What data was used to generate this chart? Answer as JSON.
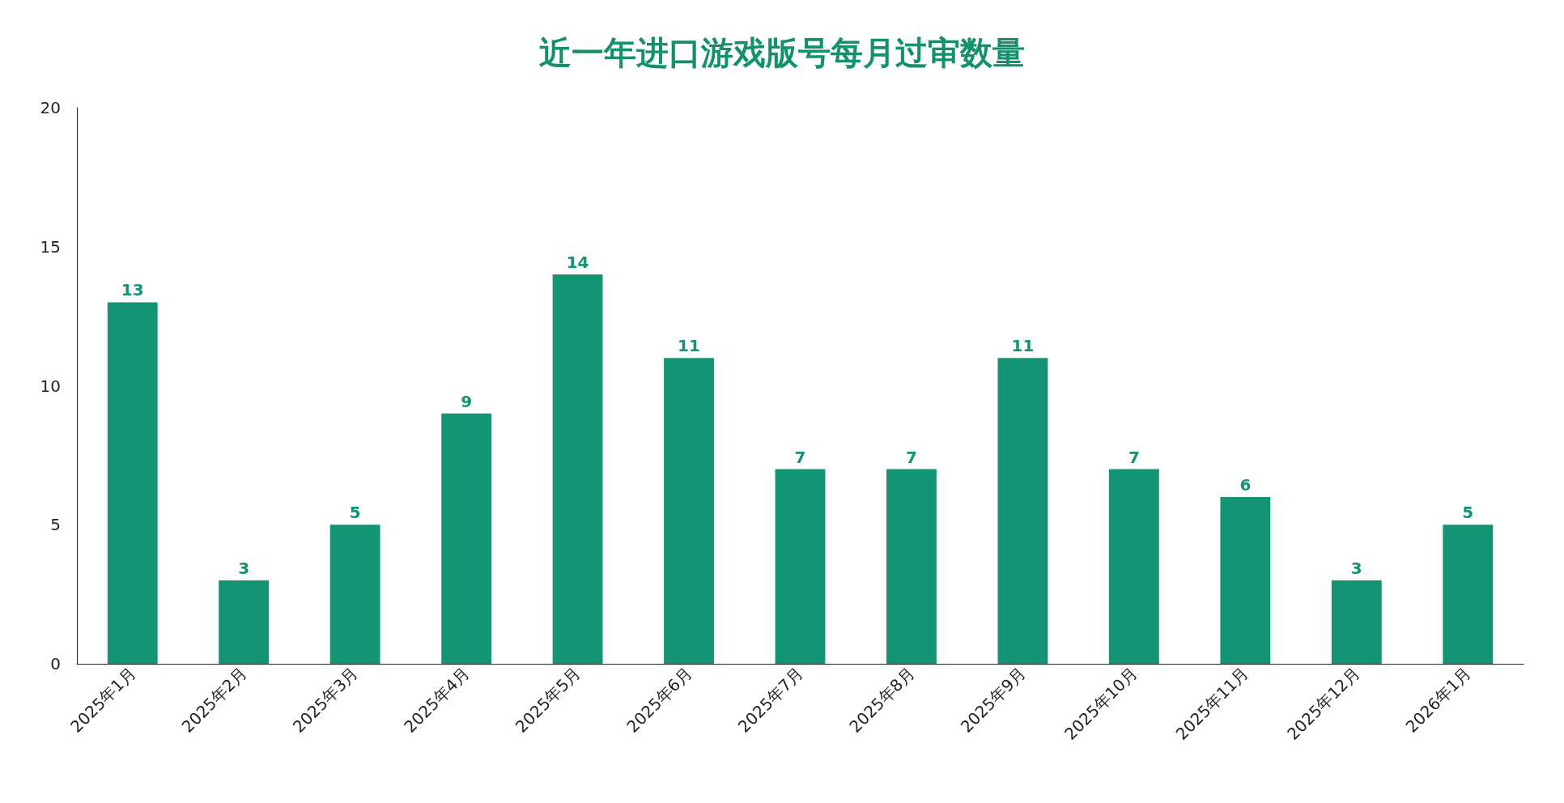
{
  "chart_data": {
    "type": "bar",
    "title": "近一年进口游戏版号每月过审数量",
    "categories": [
      "2025年1月",
      "2025年2月",
      "2025年3月",
      "2025年4月",
      "2025年5月",
      "2025年6月",
      "2025年7月",
      "2025年8月",
      "2025年9月",
      "2025年10月",
      "2025年11月",
      "2025年12月",
      "2026年1月"
    ],
    "values": [
      13,
      3,
      5,
      9,
      14,
      11,
      7,
      7,
      11,
      7,
      6,
      3,
      5
    ],
    "color": "#159375",
    "ylim": [
      0,
      20
    ],
    "yticks": [
      0,
      5,
      10,
      15,
      20
    ],
    "grid": false,
    "data_labels": true
  }
}
